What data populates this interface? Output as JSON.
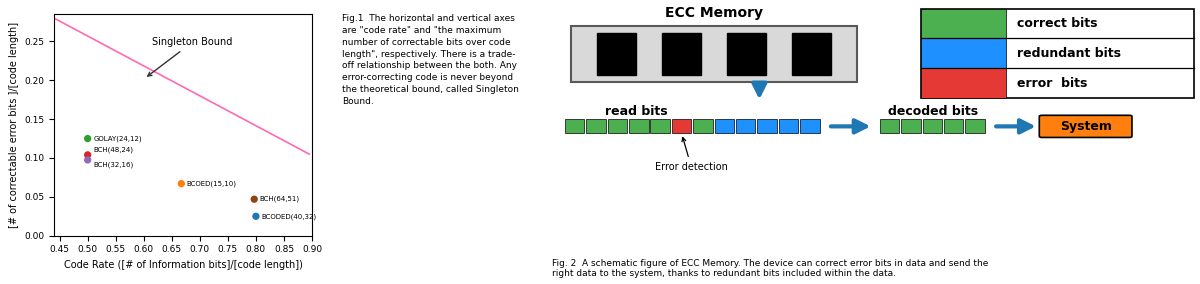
{
  "chart_data": [
    {
      "type": "scatter",
      "x_label": "Code Rate ([# of Information bits]/[code length])",
      "y_label": "[# of correctable error bits ]/[code length]",
      "xlim": [
        0.44,
        0.9
      ],
      "ylim": [
        0.0,
        0.285
      ],
      "xticks": [
        {
          "value": 0.45,
          "label": "0.45"
        },
        {
          "value": 0.5,
          "label": "0.50"
        },
        {
          "value": 0.55,
          "label": "0.55"
        },
        {
          "value": 0.6,
          "label": "0.60"
        },
        {
          "value": 0.65,
          "label": "0.65"
        },
        {
          "value": 0.7,
          "label": "0.70"
        },
        {
          "value": 0.75,
          "label": "0.75"
        },
        {
          "value": 0.8,
          "label": "0.80"
        },
        {
          "value": 0.85,
          "label": "0.85"
        },
        {
          "value": 0.9,
          "label": "0.90"
        }
      ],
      "yticks": [
        {
          "value": 0.0,
          "label": "0.00"
        },
        {
          "value": 0.05,
          "label": "0.05"
        },
        {
          "value": 0.1,
          "label": "0.10"
        },
        {
          "value": 0.15,
          "label": "0.15"
        },
        {
          "value": 0.2,
          "label": "0.20"
        },
        {
          "value": 0.25,
          "label": "0.25"
        }
      ],
      "series": [
        {
          "type": "scatter",
          "x": [
            0.5,
            0.5,
            0.5,
            0.667,
            0.797,
            0.8
          ],
          "values": [
            0.125,
            0.104,
            0.0975,
            0.067,
            0.047,
            0.025
          ],
          "labels": [
            "GOLAY(24,12)",
            "BCH(48,24)",
            "BCH(32,16)",
            "BCOED(15,10)",
            "BCH(64,51)",
            "BCODED(40,32)"
          ],
          "colors": [
            "#2ca02c",
            "#d62728",
            "#9467bd",
            "#ff7f0e",
            "#8c4513",
            "#1f77b4"
          ]
        },
        {
          "type": "line",
          "x": [
            0.44,
            0.895
          ],
          "values": [
            0.28,
            0.105
          ],
          "color": "#FF69B4"
        }
      ],
      "annotations": [
        {
          "text": "Singleton Bound",
          "x": 0.601,
          "y": 0.202,
          "text_x": 0.615,
          "text_y": 0.245
        }
      ]
    },
    {
      "type": "text",
      "text": "Fig.1  The horizontal and vertical axes\nare \"code rate\" and \"the maximum\nnumber of correctable bits over code\nlength\", respectively. There is a trade-\noff relationship between the both. Any\nerror-correcting code is never beyond\nthe theoretical bound, called Singleton\nBound."
    },
    {
      "type": "diagram",
      "title": "ECC Memory",
      "annotations": [
        "read bits",
        "Error detection",
        "decoded bits",
        "System"
      ],
      "series": [
        {
          "name": "correct bits",
          "color": "#4CAF50"
        },
        {
          "name": "redundant bits",
          "color": "#1E90FF"
        },
        {
          "name": "error  bits",
          "color": "#e53935"
        }
      ],
      "read_bits": [
        "correct bits",
        "correct bits",
        "correct bits",
        "correct bits",
        "correct bits",
        "error  bits",
        "correct bits",
        "redundant bits",
        "redundant bits",
        "redundant bits",
        "redundant bits",
        "redundant bits"
      ],
      "decoded_bits": [
        "correct bits",
        "correct bits",
        "correct bits",
        "correct bits",
        "correct bits"
      ]
    },
    {
      "type": "text",
      "text": "Fig. 2  A schematic figure of ECC Memory. The device can correct error bits in data and send the\nright data to the system, thanks to redundant bits included within the data."
    }
  ]
}
